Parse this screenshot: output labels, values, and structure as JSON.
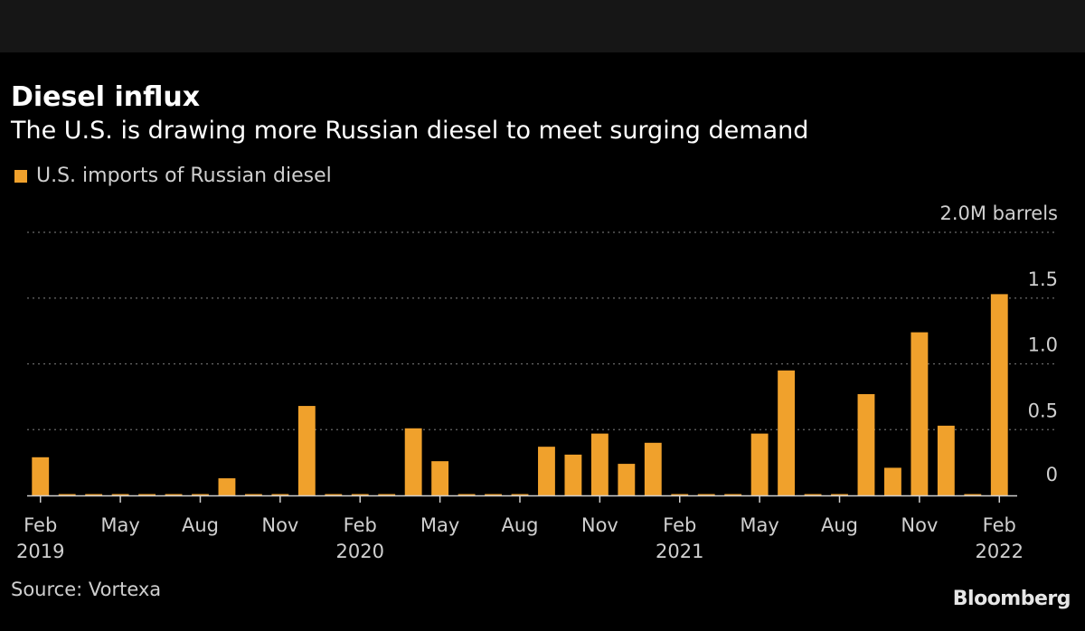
{
  "title": "Diesel influx",
  "subtitle": "The U.S. is drawing more Russian diesel to meet surging demand",
  "legend": {
    "label": "U.S. imports of Russian diesel",
    "color": "#f0a12c"
  },
  "source": "Source: Vortexa",
  "logo": "Bloomberg",
  "chart_data": {
    "type": "bar",
    "series_name": "U.S. imports of Russian diesel",
    "unit": "M barrels",
    "ylim": [
      0,
      2.0
    ],
    "y_ticks": [
      {
        "value": 0,
        "label": "0"
      },
      {
        "value": 0.5,
        "label": "0.5"
      },
      {
        "value": 1.0,
        "label": "1.0"
      },
      {
        "value": 1.5,
        "label": "1.5"
      },
      {
        "value": 2.0,
        "label": "2.0M barrels"
      }
    ],
    "categories": [
      "2019-02",
      "2019-03",
      "2019-04",
      "2019-05",
      "2019-06",
      "2019-07",
      "2019-08",
      "2019-09",
      "2019-10",
      "2019-11",
      "2019-12",
      "2020-01",
      "2020-02",
      "2020-03",
      "2020-04",
      "2020-05",
      "2020-06",
      "2020-07",
      "2020-08",
      "2020-09",
      "2020-10",
      "2020-11",
      "2020-12",
      "2021-01",
      "2021-02",
      "2021-03",
      "2021-04",
      "2021-05",
      "2021-06",
      "2021-07",
      "2021-08",
      "2021-09",
      "2021-10",
      "2021-11",
      "2021-12",
      "2022-01",
      "2022-02"
    ],
    "values": [
      0.29,
      0.01,
      0.01,
      0.01,
      0.01,
      0.01,
      0.01,
      0.13,
      0.01,
      0.01,
      0.68,
      0.01,
      0.01,
      0.01,
      0.51,
      0.26,
      0.01,
      0.01,
      0.01,
      0.37,
      0.31,
      0.47,
      0.24,
      0.4,
      0.01,
      0.01,
      0.01,
      0.47,
      0.95,
      0.01,
      0.01,
      0.77,
      0.21,
      1.24,
      0.53,
      0.01,
      1.53
    ],
    "x_tick_labels": [
      {
        "index": 0,
        "month": "Feb",
        "year": "2019"
      },
      {
        "index": 3,
        "month": "May",
        "year": ""
      },
      {
        "index": 6,
        "month": "Aug",
        "year": ""
      },
      {
        "index": 9,
        "month": "Nov",
        "year": ""
      },
      {
        "index": 12,
        "month": "Feb",
        "year": "2020"
      },
      {
        "index": 15,
        "month": "May",
        "year": ""
      },
      {
        "index": 18,
        "month": "Aug",
        "year": ""
      },
      {
        "index": 21,
        "month": "Nov",
        "year": ""
      },
      {
        "index": 24,
        "month": "Feb",
        "year": "2021"
      },
      {
        "index": 27,
        "month": "May",
        "year": ""
      },
      {
        "index": 30,
        "month": "Aug",
        "year": ""
      },
      {
        "index": 33,
        "month": "Nov",
        "year": ""
      },
      {
        "index": 36,
        "month": "Feb",
        "year": "2022"
      }
    ],
    "colors": {
      "bar": "#f0a12c",
      "grid": "#6a6a6a",
      "axis": "#cfcfcf",
      "text": "#d0d0d0"
    }
  }
}
